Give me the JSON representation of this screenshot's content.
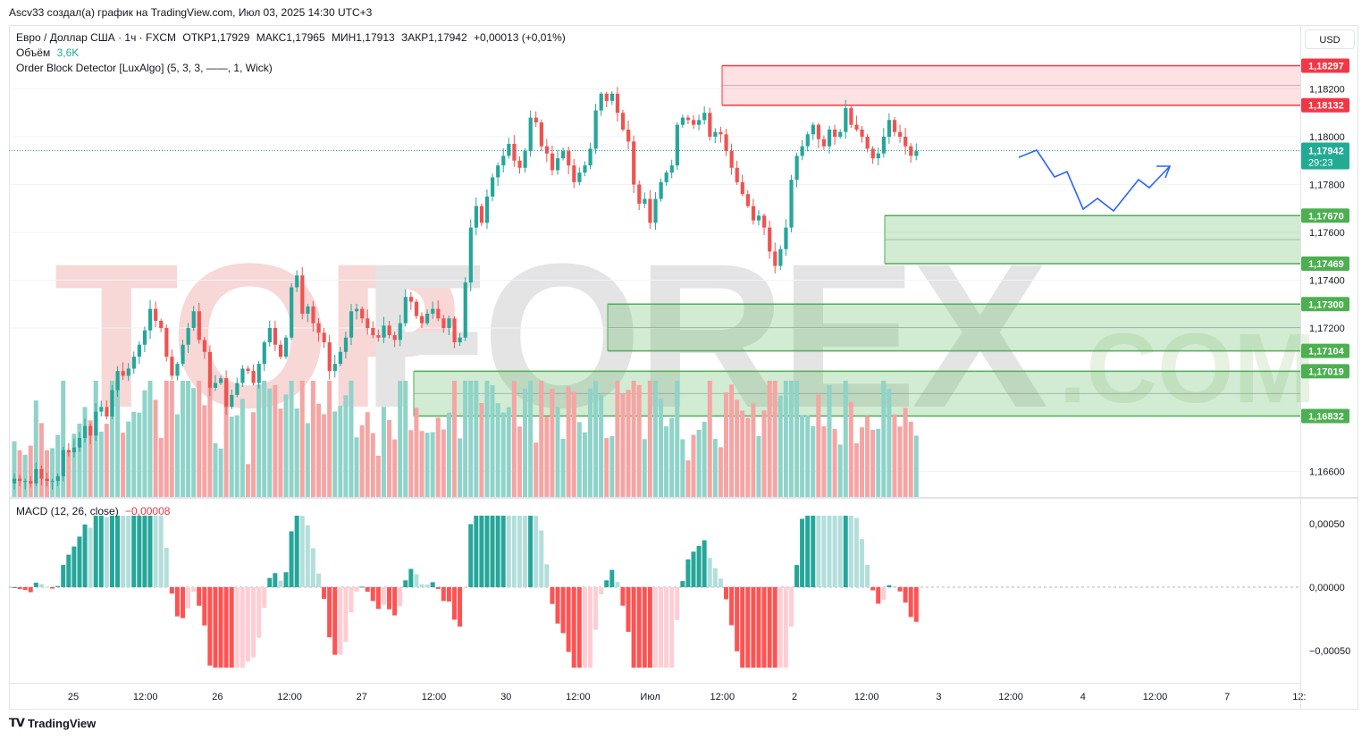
{
  "header": {
    "author_line": "Ascv33 создал(а) график на TradingView.com, Июл 03, 2025 14:30 UTC+3"
  },
  "legend": {
    "symbol": "Евро / Доллар США · 1ч · FXCM",
    "open": "ОТКР1,17929",
    "high": "МАКС1,17965",
    "low": "МИН1,17913",
    "close": "ЗАКР1,17942",
    "change": "+0,00013 (+0,01%)",
    "volume_label": "Объём",
    "volume_value": "3,6K",
    "indicator": "Order Block Detector [LuxAlgo] (5, 3, 3, ——, 1, Wick)",
    "macd_label": "MACD (12, 26, close)",
    "macd_value": "−0,00008"
  },
  "toolbar": {
    "currency": "USD"
  },
  "watermark": {
    "text": "TOPFOREX.COM"
  },
  "branding": {
    "tradingview": "TradingView"
  },
  "colors": {
    "up": "#26a69a",
    "down": "#ef5350",
    "vol_up": "#8fd3c9",
    "vol_down": "#f5a5a3",
    "bear_block": "#f23645",
    "bull_block": "#4caf50",
    "projection": "#2962ff",
    "current_price": "#22ab94",
    "macd_up_strong": "#26a69a",
    "macd_up_weak": "#b2dfdb",
    "macd_down_strong": "#ff5252",
    "macd_down_weak": "#ffcdd2"
  },
  "chart_data": [
    {
      "type": "candlestick",
      "instrument": "EUR/USD",
      "timeframe": "1h",
      "x_ticks": [
        "25",
        "12:00",
        "26",
        "12:00",
        "27",
        "12:00",
        "30",
        "12:00",
        "Июл",
        "12:00",
        "2",
        "12:00",
        "3",
        "12:00",
        "4",
        "12:00",
        "7",
        "12:"
      ],
      "y_ticks": [
        "1,18200",
        "1,18000",
        "1,17800",
        "1,17600",
        "1,17400",
        "1,17200",
        "1,16600"
      ],
      "ylim": [
        1.1655,
        1.184
      ],
      "current_price": {
        "value": "1,17942",
        "countdown": "29:23"
      },
      "closes": [
        1.1657,
        1.1656,
        1.1656,
        1.1655,
        1.1661,
        1.1657,
        1.1656,
        1.1656,
        1.1658,
        1.1669,
        1.1668,
        1.167,
        1.1674,
        1.1679,
        1.1675,
        1.1685,
        1.1687,
        1.1683,
        1.1694,
        1.1702,
        1.17,
        1.1703,
        1.1708,
        1.1713,
        1.1719,
        1.1728,
        1.1723,
        1.172,
        1.1708,
        1.17,
        1.1705,
        1.1713,
        1.172,
        1.1727,
        1.1715,
        1.171,
        1.1695,
        1.1697,
        1.1699,
        1.1687,
        1.1692,
        1.1697,
        1.1703,
        1.1702,
        1.1697,
        1.1705,
        1.1714,
        1.172,
        1.1713,
        1.1708,
        1.1716,
        1.1737,
        1.1742,
        1.1726,
        1.1729,
        1.1722,
        1.1718,
        1.1714,
        1.1702,
        1.1705,
        1.171,
        1.1716,
        1.1727,
        1.1728,
        1.1724,
        1.172,
        1.1717,
        1.1716,
        1.1721,
        1.1717,
        1.1715,
        1.1722,
        1.1733,
        1.1731,
        1.1725,
        1.1722,
        1.1726,
        1.1728,
        1.1724,
        1.172,
        1.1724,
        1.1714,
        1.1716,
        1.1739,
        1.1762,
        1.1771,
        1.1764,
        1.1775,
        1.1783,
        1.1788,
        1.1792,
        1.1797,
        1.179,
        1.1787,
        1.1794,
        1.1808,
        1.1806,
        1.1796,
        1.1793,
        1.1786,
        1.1791,
        1.1794,
        1.1788,
        1.1781,
        1.1785,
        1.1788,
        1.1795,
        1.1811,
        1.1818,
        1.1815,
        1.1818,
        1.181,
        1.1803,
        1.1798,
        1.178,
        1.1772,
        1.1774,
        1.1764,
        1.1774,
        1.1781,
        1.1785,
        1.1788,
        1.1805,
        1.1808,
        1.1807,
        1.1805,
        1.1807,
        1.181,
        1.18,
        1.1802,
        1.1801,
        1.1794,
        1.1787,
        1.1781,
        1.1776,
        1.1771,
        1.1765,
        1.1767,
        1.1762,
        1.1752,
        1.1746,
        1.1753,
        1.1762,
        1.1782,
        1.1792,
        1.1796,
        1.1801,
        1.1805,
        1.1799,
        1.1796,
        1.1803,
        1.18,
        1.1802,
        1.1812,
        1.1805,
        1.1803,
        1.18,
        1.1795,
        1.1791,
        1.1793,
        1.18,
        1.1807,
        1.1802,
        1.18,
        1.1796,
        1.1792,
        1.1794
      ]
    },
    {
      "type": "bar",
      "name": "Объём",
      "label": "3,6K"
    },
    {
      "type": "histogram",
      "name": "MACD (12, 26, close)",
      "y_ticks": [
        "0,00050",
        "0,00000",
        "−0,00050"
      ],
      "ylim": [
        -0.0007,
        0.0006
      ],
      "value": "−0,00008"
    },
    {
      "type": "zones",
      "order_blocks": [
        {
          "kind": "bearish",
          "top": "1,18297",
          "bottom": "1,18132"
        },
        {
          "kind": "bullish",
          "top": "1,17670",
          "bottom": "1,17469"
        },
        {
          "kind": "bullish",
          "top": "1,17300",
          "bottom": "1,17104"
        },
        {
          "kind": "bullish",
          "top": "1,17019",
          "bottom": "1,16832"
        }
      ]
    }
  ]
}
